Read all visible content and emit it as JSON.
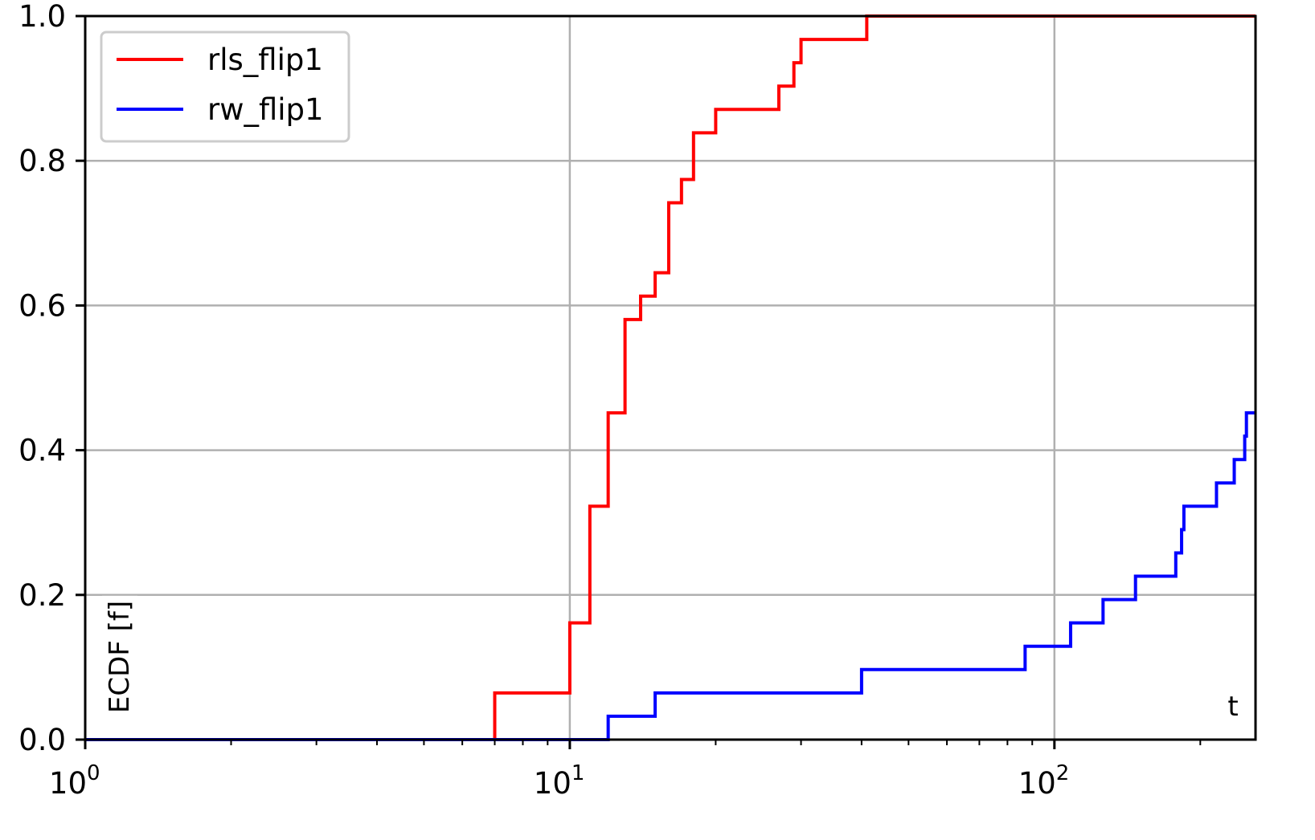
{
  "chart_data": {
    "type": "line",
    "step": "post",
    "xscale": "log",
    "xlim": [
      1,
      260
    ],
    "ylim": [
      0,
      1
    ],
    "xlabel": "t",
    "ylabel": "ECDF [f]",
    "grid": true,
    "legend_position": "top-left",
    "x_tick_labels": [
      {
        "base": "10",
        "exp": "0",
        "value": 1
      },
      {
        "base": "10",
        "exp": "1",
        "value": 10
      },
      {
        "base": "10",
        "exp": "2",
        "value": 100
      }
    ],
    "y_tick_labels": [
      "0.0",
      "0.2",
      "0.4",
      "0.6",
      "0.8",
      "1.0"
    ],
    "y_tick_values": [
      0,
      0.2,
      0.4,
      0.6,
      0.8,
      1.0
    ],
    "series": [
      {
        "name": "rls_flip1",
        "color": "#ff0000",
        "points": [
          [
            1,
            0
          ],
          [
            7.0,
            0.0645
          ],
          [
            10.0,
            0.1613
          ],
          [
            11.0,
            0.3226
          ],
          [
            12.0,
            0.4516
          ],
          [
            13.0,
            0.5806
          ],
          [
            14.0,
            0.6129
          ],
          [
            15.0,
            0.6452
          ],
          [
            16.0,
            0.7419
          ],
          [
            17.0,
            0.7742
          ],
          [
            18.0,
            0.8387
          ],
          [
            20.0,
            0.871
          ],
          [
            27.0,
            0.9032
          ],
          [
            29.0,
            0.9355
          ],
          [
            30.0,
            0.9677
          ],
          [
            41.0,
            1.0
          ],
          [
            260,
            1.0
          ]
        ]
      },
      {
        "name": "rw_flip1",
        "color": "#0000ff",
        "points": [
          [
            1,
            0
          ],
          [
            12.0,
            0.0323
          ],
          [
            15.0,
            0.0645
          ],
          [
            40.0,
            0.0968
          ],
          [
            87.0,
            0.129
          ],
          [
            108.0,
            0.1613
          ],
          [
            126.0,
            0.1935
          ],
          [
            147.0,
            0.2258
          ],
          [
            178.0,
            0.2581
          ],
          [
            183.0,
            0.2903
          ],
          [
            185.0,
            0.3226
          ],
          [
            216.0,
            0.3548
          ],
          [
            235.0,
            0.3871
          ],
          [
            247.0,
            0.4194
          ],
          [
            249.0,
            0.4516
          ],
          [
            260,
            0.4516
          ]
        ]
      }
    ]
  }
}
